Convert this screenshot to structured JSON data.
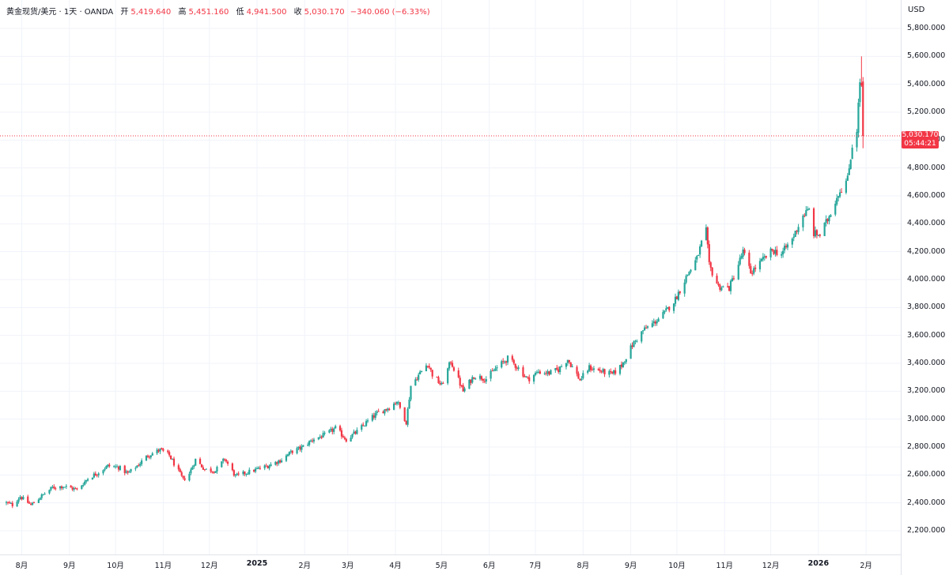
{
  "legend": {
    "symbol": "黄金现货/美元 · 1天 · OANDA",
    "open_label": "开",
    "open": "5,419.640",
    "high_label": "高",
    "high": "5,451.160",
    "low_label": "低",
    "low": "4,941.500",
    "close_label": "收",
    "close": "5,030.170",
    "change": "−340.060 (−6.33%)"
  },
  "currency": "USD",
  "last_price": {
    "value": "5,030.170",
    "countdown": "05:44:21"
  },
  "colors": {
    "up": "#26a69a",
    "down": "#f23645",
    "grid": "#f0f3fa"
  },
  "chart_data": {
    "type": "candlestick",
    "title": "黄金现货/美元 · 1天 · OANDA",
    "ylim": [
      2050,
      5950
    ],
    "y_ticks": [
      "2,200.000",
      "2,400.000",
      "2,600.000",
      "2,800.000",
      "3,000.000",
      "3,200.000",
      "3,400.000",
      "3,600.000",
      "3,800.000",
      "4,000.000",
      "4,200.000",
      "4,400.000",
      "4,600.000",
      "4,800.000",
      "5,000.000",
      "5,200.000",
      "5,400.000",
      "5,600.000",
      "5,800.000"
    ],
    "x_ticks": [
      "8月",
      "9月",
      "10月",
      "11月",
      "12月",
      "2025",
      "2月",
      "3月",
      "4月",
      "5月",
      "6月",
      "7月",
      "8月",
      "9月",
      "10月",
      "11月",
      "12月",
      "2026",
      "2月"
    ],
    "x_tick_dates": [
      "2024-08-01",
      "2024-09-01",
      "2024-10-01",
      "2024-11-01",
      "2024-12-01",
      "2025-01-01",
      "2025-02-01",
      "2025-03-01",
      "2025-04-01",
      "2025-05-01",
      "2025-06-01",
      "2025-07-01",
      "2025-08-01",
      "2025-09-01",
      "2025-10-01",
      "2025-11-01",
      "2025-12-01",
      "2026-01-01",
      "2026-02-01"
    ],
    "x_range": [
      "2024-07-22",
      "2026-02-22"
    ],
    "close_path": [
      [
        "2024-07-22",
        2400
      ],
      [
        "2024-07-26",
        2385
      ],
      [
        "2024-07-31",
        2445
      ],
      [
        "2024-08-07",
        2385
      ],
      [
        "2024-08-14",
        2450
      ],
      [
        "2024-08-21",
        2510
      ],
      [
        "2024-08-28",
        2520
      ],
      [
        "2024-09-06",
        2495
      ],
      [
        "2024-09-13",
        2575
      ],
      [
        "2024-09-20",
        2620
      ],
      [
        "2024-09-26",
        2665
      ],
      [
        "2024-10-03",
        2655
      ],
      [
        "2024-10-09",
        2610
      ],
      [
        "2024-10-16",
        2675
      ],
      [
        "2024-10-22",
        2740
      ],
      [
        "2024-10-30",
        2780
      ],
      [
        "2024-11-05",
        2740
      ],
      [
        "2024-11-14",
        2565
      ],
      [
        "2024-11-18",
        2610
      ],
      [
        "2024-11-22",
        2710
      ],
      [
        "2024-11-28",
        2640
      ],
      [
        "2024-12-05",
        2630
      ],
      [
        "2024-12-11",
        2715
      ],
      [
        "2024-12-18",
        2590
      ],
      [
        "2024-12-26",
        2620
      ],
      [
        "2025-01-08",
        2665
      ],
      [
        "2025-01-17",
        2710
      ],
      [
        "2025-01-24",
        2770
      ],
      [
        "2025-01-30",
        2795
      ],
      [
        "2025-02-07",
        2860
      ],
      [
        "2025-02-14",
        2885
      ],
      [
        "2025-02-21",
        2935
      ],
      [
        "2025-02-28",
        2855
      ],
      [
        "2025-03-07",
        2910
      ],
      [
        "2025-03-14",
        2985
      ],
      [
        "2025-03-20",
        3040
      ],
      [
        "2025-03-28",
        3085
      ],
      [
        "2025-04-02",
        3130
      ],
      [
        "2025-04-08",
        2980
      ],
      [
        "2025-04-11",
        3240
      ],
      [
        "2025-04-17",
        3330
      ],
      [
        "2025-04-22",
        3400
      ],
      [
        "2025-04-25",
        3320
      ],
      [
        "2025-05-01",
        3240
      ],
      [
        "2025-05-07",
        3415
      ],
      [
        "2025-05-15",
        3200
      ],
      [
        "2025-05-22",
        3310
      ],
      [
        "2025-05-30",
        3290
      ],
      [
        "2025-06-05",
        3360
      ],
      [
        "2025-06-13",
        3435
      ],
      [
        "2025-06-20",
        3365
      ],
      [
        "2025-06-26",
        3285
      ],
      [
        "2025-07-03",
        3340
      ],
      [
        "2025-07-10",
        3330
      ],
      [
        "2025-07-16",
        3355
      ],
      [
        "2025-07-22",
        3430
      ],
      [
        "2025-07-30",
        3280
      ],
      [
        "2025-08-05",
        3370
      ],
      [
        "2025-08-12",
        3345
      ],
      [
        "2025-08-20",
        3320
      ],
      [
        "2025-08-26",
        3385
      ],
      [
        "2025-09-02",
        3530
      ],
      [
        "2025-09-09",
        3635
      ],
      [
        "2025-09-16",
        3690
      ],
      [
        "2025-09-23",
        3760
      ],
      [
        "2025-09-30",
        3860
      ],
      [
        "2025-10-08",
        4040
      ],
      [
        "2025-10-14",
        4150
      ],
      [
        "2025-10-17",
        4260
      ],
      [
        "2025-10-20",
        4350
      ],
      [
        "2025-10-22",
        4100
      ],
      [
        "2025-10-28",
        3950
      ],
      [
        "2025-11-04",
        3940
      ],
      [
        "2025-11-10",
        4110
      ],
      [
        "2025-11-13",
        4200
      ],
      [
        "2025-11-18",
        4050
      ],
      [
        "2025-11-25",
        4130
      ],
      [
        "2025-12-02",
        4210
      ],
      [
        "2025-12-08",
        4185
      ],
      [
        "2025-12-15",
        4290
      ],
      [
        "2025-12-22",
        4460
      ],
      [
        "2025-12-26",
        4500
      ],
      [
        "2025-12-29",
        4330
      ],
      [
        "2026-01-02",
        4320
      ],
      [
        "2026-01-07",
        4430
      ],
      [
        "2026-01-14",
        4620
      ],
      [
        "2026-01-20",
        4720
      ],
      [
        "2026-01-23",
        4960
      ],
      [
        "2026-01-26",
        5080
      ],
      [
        "2026-01-28",
        5420
      ],
      [
        "2026-01-29",
        5380
      ]
    ],
    "last_candle": {
      "date": "2026-01-30",
      "open": 5419.64,
      "high": 5451.16,
      "low": 4941.5,
      "close": 5030.17
    },
    "max_wick": {
      "date": "2026-01-29",
      "high": 5600
    },
    "grid": true,
    "last_price_line": 5030.17
  }
}
